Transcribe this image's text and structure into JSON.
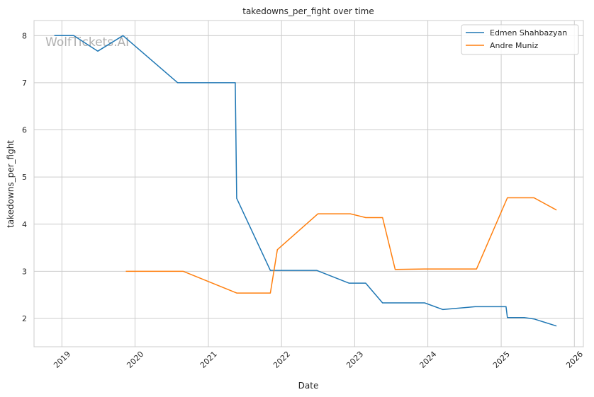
{
  "chart_data": {
    "type": "line",
    "title": "takedowns_per_fight over time",
    "xlabel": "Date",
    "ylabel": "takedowns_per_fight",
    "watermark": "WolfTickets.AI",
    "x_ticks": [
      "2019",
      "2020",
      "2021",
      "2022",
      "2023",
      "2024",
      "2025",
      "2026"
    ],
    "y_ticks": [
      2,
      3,
      4,
      5,
      6,
      7,
      8
    ],
    "xlim": [
      "2018-08-15",
      "2026-02-15"
    ],
    "ylim": [
      1.4,
      8.32
    ],
    "grid": true,
    "legend": "top-right",
    "colors": {
      "series1": "#1f77b4",
      "series2": "#ff7f0e",
      "grid": "#cccccc",
      "frame": "#cccccc"
    },
    "series": [
      {
        "name": "Edmen Shahbazyan",
        "color": "#1f77b4",
        "points": [
          [
            "2018-11-24",
            8.0
          ],
          [
            "2019-03-01",
            8.0
          ],
          [
            "2019-06-29",
            7.67
          ],
          [
            "2019-11-02",
            8.0
          ],
          [
            "2020-08-01",
            7.0
          ],
          [
            "2021-05-15",
            7.0
          ],
          [
            "2021-05-22",
            4.55
          ],
          [
            "2021-11-06",
            3.02
          ],
          [
            "2022-06-25",
            3.02
          ],
          [
            "2022-12-03",
            2.75
          ],
          [
            "2023-02-25",
            2.75
          ],
          [
            "2023-05-20",
            2.33
          ],
          [
            "2023-12-16",
            2.33
          ],
          [
            "2024-03-16",
            2.19
          ],
          [
            "2024-08-24",
            2.25
          ],
          [
            "2025-01-25",
            2.25
          ],
          [
            "2025-02-01",
            2.02
          ],
          [
            "2025-04-26",
            2.02
          ],
          [
            "2025-06-14",
            1.99
          ],
          [
            "2025-10-04",
            1.84
          ]
        ]
      },
      {
        "name": "Andre Muniz",
        "color": "#ff7f0e",
        "points": [
          [
            "2019-11-16",
            3.0
          ],
          [
            "2020-08-29",
            3.0
          ],
          [
            "2021-05-22",
            2.54
          ],
          [
            "2021-11-06",
            2.54
          ],
          [
            "2021-12-11",
            3.46
          ],
          [
            "2022-07-02",
            4.22
          ],
          [
            "2022-12-10",
            4.22
          ],
          [
            "2023-02-25",
            4.14
          ],
          [
            "2023-05-20",
            4.14
          ],
          [
            "2023-07-22",
            3.04
          ],
          [
            "2023-12-16",
            3.05
          ],
          [
            "2024-08-31",
            3.05
          ],
          [
            "2025-02-01",
            4.56
          ],
          [
            "2025-06-14",
            4.56
          ],
          [
            "2025-10-04",
            4.3
          ]
        ]
      }
    ]
  }
}
